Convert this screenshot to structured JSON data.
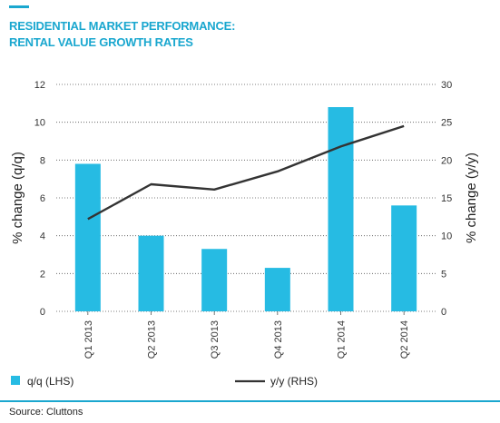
{
  "header": {
    "title_line1": "RESIDENTIAL MARKET PERFORMANCE:",
    "title_line2": "RENTAL VALUE GROWTH RATES"
  },
  "colors": {
    "accent": "#1aa7cf",
    "bar": "#26bbe3",
    "line": "#333333",
    "rule": "#1aa7cf"
  },
  "chart_data": {
    "type": "bar",
    "categories": [
      "Q1 2013",
      "Q2 2013",
      "Q3 2013",
      "Q4 2013",
      "Q1 2014",
      "Q2 2014"
    ],
    "series": [
      {
        "name": "q/q (LHS)",
        "type": "bar",
        "axis": "left",
        "values": [
          7.8,
          4.0,
          3.3,
          2.3,
          10.8,
          5.6
        ]
      },
      {
        "name": "y/y (RHS)",
        "type": "line",
        "axis": "right",
        "values": [
          12.2,
          16.8,
          16.1,
          18.5,
          21.8,
          24.5
        ]
      }
    ],
    "ylabel_left": "% change (q/q)",
    "ylabel_right": "% change (y/y)",
    "ylim_left": [
      0,
      12
    ],
    "ylim_right": [
      0,
      30
    ],
    "yticks_left": [
      "0",
      "2",
      "4",
      "6",
      "8",
      "10",
      "12"
    ],
    "yticks_right": [
      "0",
      "5",
      "10",
      "15",
      "20",
      "25",
      "30"
    ],
    "grid": "dotted horizontal",
    "legend_position": "bottom"
  },
  "footer": {
    "source": "Source: Cluttons"
  }
}
